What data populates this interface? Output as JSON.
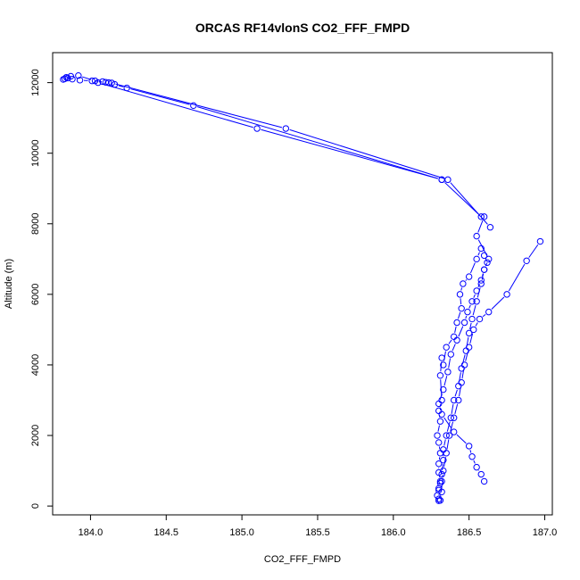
{
  "chart_data": {
    "type": "line",
    "title": "ORCAS RF14vlonS CO2_FFF_FMPD",
    "xlabel": "CO2_FFF_FMPD",
    "ylabel": "Altitude (m)",
    "xlim": [
      183.75,
      187.05
    ],
    "ylim": [
      -250,
      12850
    ],
    "xticks": [
      184.0,
      184.5,
      185.0,
      185.5,
      186.0,
      186.5,
      187.0
    ],
    "xtick_labels": [
      "184.0",
      "184.5",
      "185.0",
      "185.5",
      "186.0",
      "186.5",
      "187.0"
    ],
    "yticks": [
      0,
      2000,
      4000,
      6000,
      8000,
      10000,
      12000
    ],
    "ytick_labels": [
      "0",
      "2000",
      "4000",
      "6000",
      "8000",
      "10000",
      "12000"
    ],
    "grid": false,
    "marker": "open-circle",
    "colors": {
      "series": "#0000ff",
      "axis": "#000000"
    },
    "series": [
      {
        "x": [
          186.3,
          186.29,
          186.3,
          186.31,
          186.3,
          186.3,
          186.31,
          186.3,
          186.29,
          186.31,
          186.3,
          186.32,
          186.31,
          186.32,
          186.33,
          186.35,
          186.4,
          186.42,
          186.45,
          186.44,
          186.46,
          186.5,
          186.55,
          186.58,
          186.6,
          186.62,
          186.6,
          186.58,
          186.55,
          186.52,
          186.49,
          186.47,
          186.42,
          186.38,
          186.36,
          186.33,
          186.3,
          186.32,
          186.4,
          186.5,
          186.52,
          186.55,
          186.58,
          186.6
        ],
        "y": [
          150,
          300,
          500,
          700,
          950,
          1200,
          1500,
          1800,
          2000,
          2400,
          2700,
          3000,
          3700,
          4200,
          4000,
          4500,
          4800,
          5200,
          5600,
          6000,
          6300,
          6500,
          7000,
          7300,
          7100,
          6900,
          6700,
          6400,
          6100,
          5800,
          5500,
          5200,
          4700,
          4300,
          3800,
          3300,
          2900,
          2600,
          2100,
          1700,
          1400,
          1100,
          900,
          700
        ]
      },
      {
        "x": [
          186.3,
          186.3,
          186.31,
          186.32,
          186.33,
          186.33,
          186.35,
          186.38,
          186.4,
          186.43,
          186.45,
          186.48,
          186.5,
          186.52,
          186.55,
          186.58,
          186.6,
          186.63,
          186.55,
          186.6
        ],
        "y": [
          200,
          450,
          650,
          900,
          1300,
          1600,
          2000,
          2500,
          3000,
          3400,
          3900,
          4400,
          4900,
          5300,
          5800,
          6300,
          6700,
          7000,
          7650,
          8200
        ]
      },
      {
        "x": [
          186.31,
          186.32,
          186.32,
          186.33,
          186.35,
          186.37,
          186.4,
          186.43,
          186.45,
          186.47,
          186.5,
          186.53,
          186.57,
          186.63,
          186.75,
          186.88,
          186.97
        ],
        "y": [
          160,
          400,
          700,
          1000,
          1500,
          2000,
          2500,
          3000,
          3500,
          4000,
          4500,
          5000,
          5300,
          5500,
          6000,
          6950,
          7500
        ]
      },
      {
        "x": [
          186.58,
          186.32,
          184.68,
          184.24,
          184.16,
          184.12,
          184.08,
          184.01,
          183.93,
          183.88,
          183.85,
          183.83,
          183.82,
          183.84,
          183.87,
          183.92,
          184.03,
          184.1,
          184.14,
          185.29,
          186.36,
          186.64
        ],
        "y": [
          8200,
          9250,
          11350,
          11850,
          11950,
          12000,
          12030,
          12050,
          12070,
          12100,
          12130,
          12110,
          12090,
          12150,
          12180,
          12200,
          12050,
          12010,
          11990,
          10700,
          9250,
          7900
        ]
      },
      {
        "x": [
          184.05,
          185.1,
          186.32
        ],
        "y": [
          12000,
          10700,
          9250
        ]
      }
    ]
  }
}
